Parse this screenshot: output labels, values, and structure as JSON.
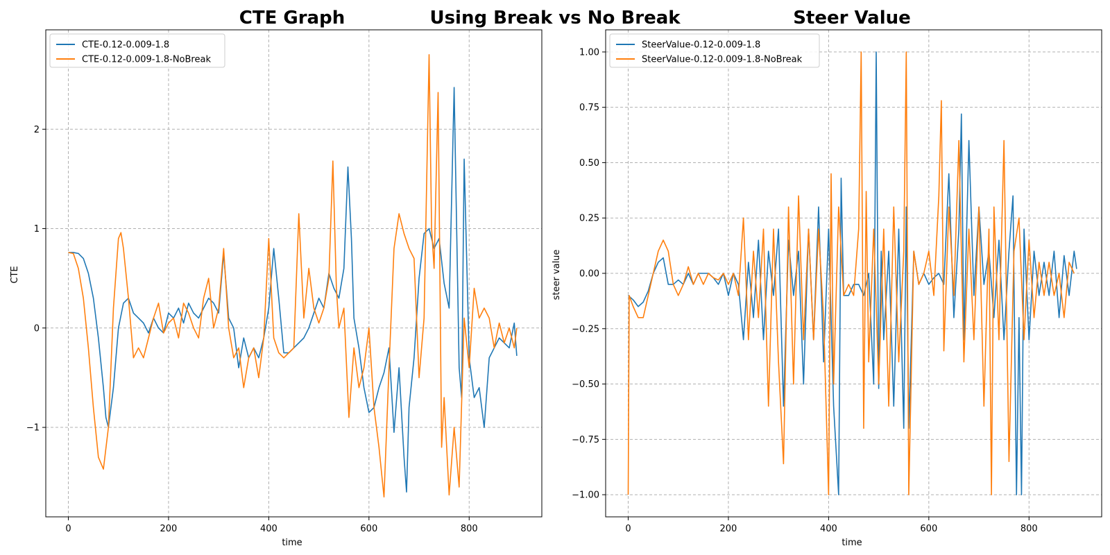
{
  "figure": {
    "suptitle": "Using Break vs No Break",
    "colors": {
      "series_a": "#1f77b4",
      "series_b": "#ff7f0e",
      "grid": "#b0b0b0",
      "background": "#ffffff"
    }
  },
  "chart_data": [
    {
      "type": "line",
      "title": "CTE Graph",
      "xlabel": "time",
      "ylabel": "CTE",
      "xlim": [
        -45,
        945
      ],
      "ylim": [
        -1.9,
        3.0
      ],
      "xticks": [
        0,
        200,
        400,
        600,
        800
      ],
      "yticks": [
        -1,
        0,
        1,
        2
      ],
      "ytick_labels": [
        "−1",
        "0",
        "1",
        "2"
      ],
      "grid": true,
      "legend_position": "upper-left",
      "series": [
        {
          "name": "CTE-0.12-0.009-1.8",
          "color": "#1f77b4",
          "x": [
            0,
            10,
            20,
            30,
            40,
            50,
            60,
            70,
            75,
            80,
            90,
            100,
            110,
            120,
            130,
            140,
            150,
            160,
            170,
            180,
            190,
            200,
            210,
            220,
            230,
            240,
            250,
            260,
            270,
            280,
            290,
            300,
            310,
            320,
            330,
            340,
            350,
            360,
            370,
            380,
            390,
            400,
            410,
            420,
            430,
            440,
            450,
            460,
            470,
            480,
            490,
            500,
            510,
            520,
            530,
            540,
            550,
            558,
            565,
            570,
            580,
            590,
            600,
            610,
            620,
            630,
            640,
            650,
            660,
            670,
            675,
            680,
            690,
            700,
            710,
            720,
            730,
            740,
            750,
            760,
            770,
            780,
            785,
            790,
            800,
            810,
            820,
            830,
            840,
            850,
            860,
            870,
            880,
            890,
            895
          ],
          "values": [
            0.76,
            0.76,
            0.75,
            0.7,
            0.55,
            0.3,
            -0.1,
            -0.6,
            -0.9,
            -1.0,
            -0.6,
            0.0,
            0.25,
            0.3,
            0.15,
            0.1,
            0.05,
            -0.05,
            0.1,
            0.0,
            -0.05,
            0.15,
            0.1,
            0.2,
            0.05,
            0.25,
            0.15,
            0.1,
            0.2,
            0.3,
            0.25,
            0.15,
            0.75,
            0.1,
            0.0,
            -0.4,
            -0.1,
            -0.3,
            -0.2,
            -0.3,
            -0.1,
            0.2,
            0.8,
            0.3,
            -0.25,
            -0.25,
            -0.2,
            -0.15,
            -0.1,
            0.0,
            0.15,
            0.3,
            0.2,
            0.55,
            0.4,
            0.3,
            0.6,
            1.62,
            0.9,
            0.1,
            -0.2,
            -0.6,
            -0.85,
            -0.8,
            -0.6,
            -0.45,
            -0.2,
            -1.05,
            -0.4,
            -1.3,
            -1.65,
            -0.8,
            -0.3,
            0.5,
            0.95,
            1.0,
            0.8,
            0.9,
            0.45,
            0.2,
            2.42,
            -0.4,
            -0.7,
            1.7,
            -0.3,
            -0.7,
            -0.6,
            -1.0,
            -0.3,
            -0.2,
            -0.1,
            -0.15,
            -0.2,
            0.05,
            -0.28
          ]
        },
        {
          "name": "CTE-0.12-0.009-1.8-NoBreak",
          "color": "#ff7f0e",
          "x": [
            0,
            10,
            20,
            30,
            40,
            50,
            60,
            70,
            80,
            90,
            100,
            105,
            110,
            120,
            130,
            140,
            150,
            160,
            170,
            180,
            190,
            200,
            210,
            220,
            230,
            240,
            250,
            260,
            270,
            280,
            290,
            300,
            310,
            320,
            330,
            340,
            350,
            360,
            370,
            380,
            390,
            400,
            410,
            420,
            430,
            440,
            450,
            460,
            470,
            480,
            490,
            500,
            510,
            520,
            528,
            535,
            540,
            550,
            560,
            570,
            580,
            590,
            600,
            610,
            620,
            630,
            640,
            650,
            660,
            670,
            680,
            690,
            700,
            710,
            720,
            725,
            730,
            738,
            745,
            750,
            760,
            770,
            780,
            790,
            800,
            810,
            820,
            830,
            840,
            850,
            860,
            870,
            880,
            890,
            895
          ],
          "values": [
            0.76,
            0.75,
            0.6,
            0.3,
            -0.2,
            -0.8,
            -1.3,
            -1.42,
            -1.0,
            0.2,
            0.9,
            0.96,
            0.8,
            0.3,
            -0.3,
            -0.2,
            -0.3,
            -0.1,
            0.1,
            0.25,
            -0.05,
            0.05,
            0.1,
            -0.1,
            0.25,
            0.15,
            0.0,
            -0.1,
            0.3,
            0.5,
            0.0,
            0.2,
            0.8,
            0.0,
            -0.3,
            -0.2,
            -0.6,
            -0.3,
            -0.2,
            -0.5,
            -0.1,
            0.9,
            -0.1,
            -0.25,
            -0.3,
            -0.25,
            -0.2,
            1.15,
            0.1,
            0.6,
            0.2,
            0.05,
            0.2,
            0.5,
            1.68,
            0.4,
            0.0,
            0.2,
            -0.9,
            -0.2,
            -0.6,
            -0.4,
            0.0,
            -0.8,
            -1.2,
            -1.7,
            -0.4,
            0.8,
            1.15,
            0.95,
            0.8,
            0.7,
            -0.5,
            0.1,
            2.75,
            1.0,
            0.6,
            2.37,
            -1.2,
            -0.7,
            -1.68,
            -1.0,
            -1.6,
            0.1,
            -0.4,
            0.4,
            0.1,
            0.2,
            0.1,
            -0.2,
            0.05,
            -0.15,
            0.0,
            -0.2,
            0.0
          ]
        }
      ]
    },
    {
      "type": "line",
      "title": "Steer Value",
      "xlabel": "time",
      "ylabel": "steer value",
      "xlim": [
        -45,
        945
      ],
      "ylim": [
        -1.1,
        1.1
      ],
      "xticks": [
        0,
        200,
        400,
        600,
        800
      ],
      "yticks": [
        -1.0,
        -0.75,
        -0.5,
        -0.25,
        0.0,
        0.25,
        0.5,
        0.75,
        1.0
      ],
      "ytick_labels": [
        "−1.00",
        "−0.75",
        "−0.50",
        "−0.25",
        "0.00",
        "0.25",
        "0.50",
        "0.75",
        "1.00"
      ],
      "grid": true,
      "legend_position": "upper-left",
      "series": [
        {
          "name": "SteerValue-0.12-0.009-1.8",
          "color": "#1f77b4",
          "x": [
            0,
            10,
            20,
            30,
            40,
            50,
            60,
            70,
            80,
            90,
            100,
            110,
            120,
            130,
            140,
            150,
            160,
            170,
            180,
            190,
            200,
            210,
            220,
            230,
            240,
            250,
            260,
            270,
            280,
            290,
            300,
            310,
            320,
            330,
            340,
            350,
            360,
            370,
            380,
            390,
            400,
            410,
            420,
            425,
            430,
            440,
            450,
            460,
            470,
            480,
            490,
            495,
            500,
            505,
            510,
            520,
            530,
            540,
            550,
            555,
            560,
            570,
            580,
            590,
            600,
            610,
            620,
            630,
            640,
            650,
            660,
            665,
            670,
            680,
            690,
            700,
            710,
            720,
            730,
            740,
            750,
            760,
            768,
            775,
            780,
            785,
            790,
            800,
            810,
            820,
            830,
            840,
            850,
            860,
            870,
            880,
            890,
            895
          ],
          "values": [
            -0.1,
            -0.12,
            -0.15,
            -0.13,
            -0.08,
            0.0,
            0.05,
            0.07,
            -0.05,
            -0.05,
            -0.03,
            -0.05,
            0.0,
            -0.05,
            0.0,
            0.0,
            0.0,
            -0.02,
            -0.05,
            0.0,
            -0.1,
            0.0,
            -0.05,
            -0.3,
            0.05,
            -0.2,
            0.15,
            -0.3,
            0.1,
            -0.1,
            0.2,
            -0.6,
            0.15,
            -0.1,
            0.1,
            -0.5,
            0.2,
            -0.3,
            0.3,
            -0.4,
            0.2,
            -0.6,
            -1.0,
            0.43,
            -0.1,
            -0.1,
            -0.05,
            -0.05,
            -0.1,
            0.0,
            -0.5,
            1.0,
            -0.52,
            0.1,
            -0.3,
            0.1,
            -0.6,
            0.2,
            -0.7,
            0.3,
            -0.7,
            0.1,
            -0.05,
            0.0,
            -0.05,
            -0.02,
            0.0,
            -0.05,
            0.45,
            -0.2,
            0.2,
            0.72,
            -0.3,
            0.6,
            -0.1,
            0.3,
            -0.05,
            0.1,
            -0.2,
            0.15,
            -0.3,
            0.1,
            0.35,
            -1.0,
            -0.2,
            -1.0,
            0.2,
            -0.3,
            0.1,
            -0.1,
            0.05,
            -0.1,
            0.1,
            -0.2,
            0.08,
            -0.1,
            0.1,
            0.02
          ]
        },
        {
          "name": "SteerValue-0.12-0.009-1.8-NoBreak",
          "color": "#ff7f0e",
          "x": [
            0,
            2,
            10,
            20,
            30,
            40,
            50,
            60,
            70,
            80,
            90,
            100,
            110,
            120,
            130,
            140,
            150,
            160,
            170,
            180,
            190,
            200,
            210,
            220,
            230,
            240,
            250,
            260,
            270,
            280,
            290,
            300,
            310,
            320,
            330,
            340,
            350,
            360,
            370,
            380,
            390,
            400,
            405,
            410,
            420,
            430,
            440,
            450,
            460,
            465,
            470,
            475,
            480,
            490,
            500,
            510,
            520,
            530,
            540,
            550,
            555,
            560,
            570,
            580,
            590,
            600,
            610,
            620,
            625,
            630,
            640,
            650,
            660,
            670,
            680,
            690,
            700,
            710,
            720,
            725,
            730,
            740,
            750,
            760,
            770,
            780,
            790,
            800,
            810,
            820,
            830,
            840,
            850,
            860,
            870,
            880,
            890
          ],
          "values": [
            -1.0,
            -0.1,
            -0.15,
            -0.2,
            -0.2,
            -0.1,
            0.0,
            0.1,
            0.15,
            0.1,
            -0.05,
            -0.1,
            -0.05,
            0.03,
            -0.05,
            0.0,
            -0.05,
            0.0,
            -0.02,
            -0.03,
            0.0,
            -0.05,
            0.0,
            -0.1,
            0.25,
            -0.3,
            0.1,
            -0.2,
            0.2,
            -0.6,
            0.2,
            -0.4,
            -0.86,
            0.3,
            -0.5,
            0.35,
            -0.3,
            0.2,
            -0.3,
            0.2,
            -0.2,
            -1.0,
            0.45,
            -0.5,
            0.3,
            -0.1,
            -0.05,
            -0.1,
            0.2,
            1.0,
            -0.7,
            0.37,
            -0.4,
            0.2,
            -0.5,
            0.2,
            -0.6,
            0.3,
            -0.4,
            0.1,
            1.0,
            -1.0,
            0.1,
            -0.05,
            0.0,
            0.1,
            -0.1,
            0.35,
            0.78,
            -0.35,
            0.3,
            -0.1,
            0.6,
            -0.4,
            0.2,
            -0.3,
            0.3,
            -0.6,
            0.2,
            -1.0,
            0.3,
            -0.3,
            0.6,
            -0.85,
            0.1,
            0.25,
            -0.3,
            0.15,
            -0.2,
            0.05,
            -0.1,
            0.05,
            -0.1,
            0.0,
            -0.2,
            0.05,
            0.0
          ]
        }
      ]
    }
  ]
}
